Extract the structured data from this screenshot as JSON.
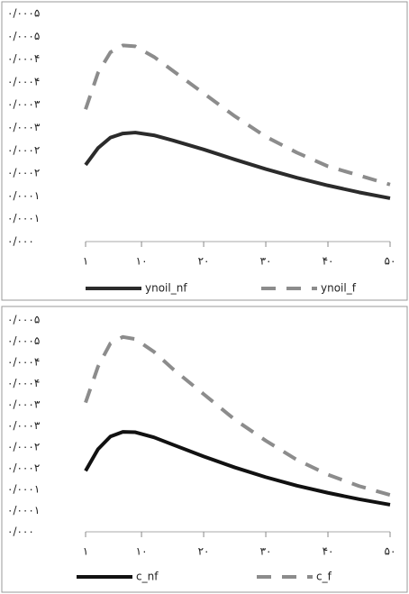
{
  "chart_data": [
    {
      "type": "line",
      "x": [
        1,
        3,
        5,
        7,
        9,
        12,
        15,
        20,
        25,
        30,
        35,
        40,
        45,
        50
      ],
      "series": [
        {
          "name": "ynoil_nf",
          "color": "#2b2b2b",
          "dash": false,
          "values": [
            0.000168,
            0.000205,
            0.000228,
            0.000237,
            0.000239,
            0.000233,
            0.000222,
            0.000202,
            0.00018,
            0.000159,
            0.00014,
            0.000123,
            0.000108,
            9.5e-05
          ]
        },
        {
          "name": "ynoil_f",
          "color": "#8c8c8c",
          "dash": true,
          "values": [
            0.00029,
            0.00037,
            0.000415,
            0.00043,
            0.000428,
            0.000405,
            0.000375,
            0.000325,
            0.000275,
            0.00023,
            0.000195,
            0.000165,
            0.000145,
            0.000125
          ]
        }
      ],
      "xlim": [
        1,
        50
      ],
      "xticks": [
        {
          "value": 1,
          "label": "۱"
        },
        {
          "value": 10,
          "label": "۱۰"
        },
        {
          "value": 20,
          "label": "۲۰"
        },
        {
          "value": 30,
          "label": "۳۰"
        },
        {
          "value": 40,
          "label": "۴۰"
        },
        {
          "value": 50,
          "label": "۵۰"
        }
      ],
      "ylim": [
        0,
        0.0005
      ],
      "yticks": [
        {
          "value": 0,
          "label": "۰/۰۰۰"
        },
        {
          "value": 5e-05,
          "label": "۰/۰۰۰۱"
        },
        {
          "value": 0.0001,
          "label": "۰/۰۰۰۱"
        },
        {
          "value": 0.00015,
          "label": "۰/۰۰۰۲"
        },
        {
          "value": 0.0002,
          "label": "۰/۰۰۰۲"
        },
        {
          "value": 0.00025,
          "label": "۰/۰۰۰۳"
        },
        {
          "value": 0.0003,
          "label": "۰/۰۰۰۳"
        },
        {
          "value": 0.00035,
          "label": "۰/۰۰۰۴"
        },
        {
          "value": 0.0004,
          "label": "۰/۰۰۰۴"
        },
        {
          "value": 0.00045,
          "label": "۰/۰۰۰۵"
        },
        {
          "value": 0.0005,
          "label": "۰/۰۰۰۵"
        }
      ]
    },
    {
      "type": "line",
      "x": [
        1,
        3,
        5,
        7,
        9,
        12,
        15,
        20,
        25,
        30,
        35,
        40,
        45,
        50
      ],
      "series": [
        {
          "name": "c_nf",
          "color": "#111111",
          "dash": false,
          "values": [
            0.000144,
            0.000195,
            0.000225,
            0.000236,
            0.000235,
            0.000223,
            0.000206,
            0.000178,
            0.000152,
            0.000129,
            0.000109,
            9.2e-05,
            7.7e-05,
            6.4e-05
          ]
        },
        {
          "name": "c_f",
          "color": "#8c8c8c",
          "dash": true,
          "values": [
            0.000305,
            0.00039,
            0.000445,
            0.00046,
            0.000455,
            0.000425,
            0.000385,
            0.000325,
            0.000265,
            0.000215,
            0.00017,
            0.000135,
            0.000108,
            8.7e-05
          ]
        }
      ],
      "xlim": [
        1,
        50
      ],
      "xticks": [
        {
          "value": 1,
          "label": "۱"
        },
        {
          "value": 10,
          "label": "۱۰"
        },
        {
          "value": 20,
          "label": "۲۰"
        },
        {
          "value": 30,
          "label": "۳۰"
        },
        {
          "value": 40,
          "label": "۴۰"
        },
        {
          "value": 50,
          "label": "۵۰"
        }
      ],
      "ylim": [
        0,
        0.0005
      ],
      "yticks": [
        {
          "value": 0,
          "label": "۰/۰۰۰"
        },
        {
          "value": 5e-05,
          "label": "۰/۰۰۰۱"
        },
        {
          "value": 0.0001,
          "label": "۰/۰۰۰۱"
        },
        {
          "value": 0.00015,
          "label": "۰/۰۰۰۲"
        },
        {
          "value": 0.0002,
          "label": "۰/۰۰۰۲"
        },
        {
          "value": 0.00025,
          "label": "۰/۰۰۰۳"
        },
        {
          "value": 0.0003,
          "label": "۰/۰۰۰۳"
        },
        {
          "value": 0.00035,
          "label": "۰/۰۰۰۴"
        },
        {
          "value": 0.0004,
          "label": "۰/۰۰۰۴"
        },
        {
          "value": 0.00045,
          "label": "۰/۰۰۰۵"
        },
        {
          "value": 0.0005,
          "label": "۰/۰۰۰۵"
        }
      ]
    }
  ]
}
